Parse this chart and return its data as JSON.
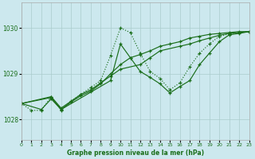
{
  "xlabel": "Graphe pression niveau de la mer (hPa)",
  "background_color": "#cce8ee",
  "grid_color": "#aacccc",
  "line_color": "#1a6e1a",
  "xmin": 0,
  "xmax": 23,
  "ymin": 1027.55,
  "ymax": 1030.55,
  "yticks": [
    1028,
    1029,
    1030
  ],
  "xticks": [
    0,
    1,
    2,
    3,
    4,
    5,
    6,
    7,
    8,
    9,
    10,
    11,
    12,
    13,
    14,
    15,
    16,
    17,
    18,
    19,
    20,
    21,
    22,
    23
  ],
  "series": [
    {
      "x": [
        0,
        1,
        2,
        3,
        4,
        5,
        6,
        7,
        8,
        9,
        10,
        11,
        12,
        13,
        14,
        15,
        16,
        17,
        18,
        19,
        20,
        21,
        22,
        23
      ],
      "y": [
        1028.35,
        1028.2,
        1028.2,
        1028.5,
        1028.2,
        1028.4,
        1028.55,
        1028.7,
        1028.85,
        1029.4,
        1030.0,
        1029.9,
        1029.45,
        1029.05,
        1028.9,
        1028.65,
        1028.8,
        1029.15,
        1029.45,
        1029.65,
        1029.82,
        1029.87,
        1029.9,
        1029.92
      ],
      "dotted": true
    },
    {
      "x": [
        0,
        3,
        4,
        6,
        7,
        8,
        9,
        10,
        12,
        13,
        14,
        16,
        17,
        18,
        19,
        20,
        21,
        22,
        23
      ],
      "y": [
        1028.35,
        1028.5,
        1028.25,
        1028.55,
        1028.65,
        1028.8,
        1028.95,
        1029.1,
        1029.2,
        1029.35,
        1029.5,
        1029.6,
        1029.65,
        1029.72,
        1029.78,
        1029.84,
        1029.88,
        1029.9,
        1029.92
      ],
      "dotted": false
    },
    {
      "x": [
        0,
        2,
        3,
        4,
        5,
        6,
        7,
        8,
        9,
        10,
        11,
        12,
        13,
        14,
        15,
        16,
        17,
        18,
        19,
        20,
        21,
        22,
        23
      ],
      "y": [
        1028.35,
        1028.22,
        1028.45,
        1028.22,
        1028.38,
        1028.52,
        1028.62,
        1028.78,
        1029.0,
        1029.2,
        1029.35,
        1029.42,
        1029.5,
        1029.6,
        1029.65,
        1029.7,
        1029.78,
        1029.82,
        1029.86,
        1029.88,
        1029.9,
        1029.92,
        1029.92
      ],
      "dotted": false
    },
    {
      "x": [
        0,
        3,
        4,
        9,
        10,
        11,
        12,
        13,
        14,
        15,
        16,
        17,
        18,
        19,
        20,
        21,
        22,
        23
      ],
      "y": [
        1028.35,
        1028.48,
        1028.22,
        1028.85,
        1029.65,
        1029.35,
        1029.05,
        1028.92,
        1028.78,
        1028.58,
        1028.72,
        1028.85,
        1029.2,
        1029.45,
        1029.7,
        1029.85,
        1029.88,
        1029.92
      ],
      "dotted": false
    }
  ]
}
